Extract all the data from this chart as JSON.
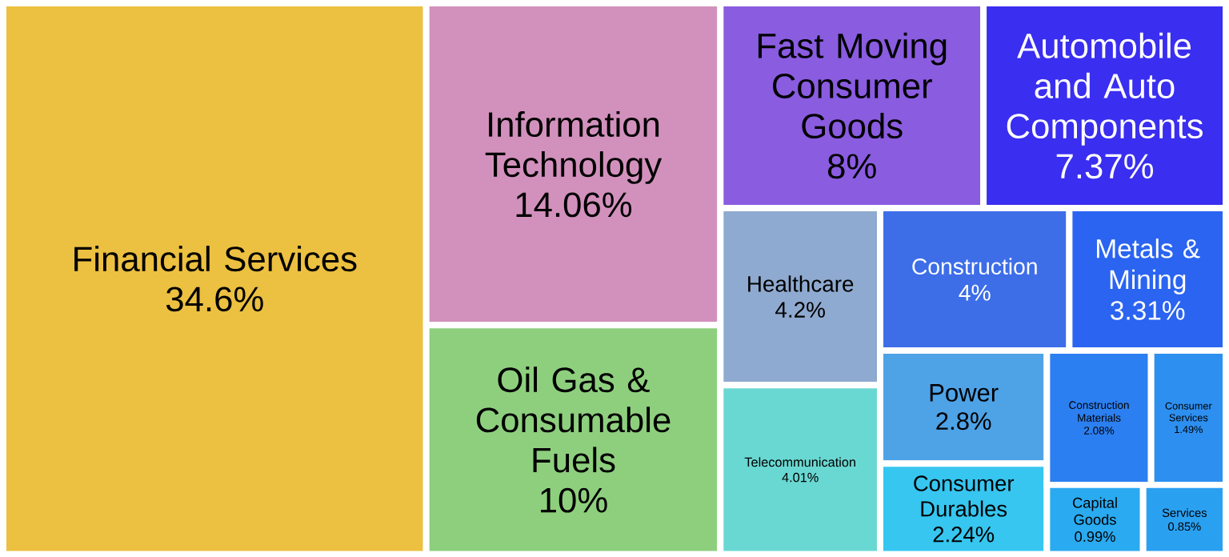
{
  "chart_data": {
    "type": "other",
    "categories": [
      "Financial Services",
      "Information Technology",
      "Oil Gas & Consumable Fuels",
      "Fast Moving Consumer Goods",
      "Automobile and Auto Components",
      "Healthcare",
      "Telecommunication",
      "Construction",
      "Metals & Mining",
      "Power",
      "Consumer Durables",
      "Construction Materials",
      "Consumer Services",
      "Capital Goods",
      "Services"
    ],
    "values": [
      34.6,
      14.06,
      10,
      8,
      7.37,
      4.2,
      4.01,
      4,
      3.31,
      2.8,
      2.24,
      2.08,
      1.49,
      0.99,
      0.85
    ],
    "value_labels": [
      "34.6%",
      "14.06%",
      "10%",
      "8%",
      "7.37%",
      "4.2%",
      "4.01%",
      "4%",
      "3.31%",
      "2.8%",
      "2.24%",
      "2.08%",
      "1.49%",
      "0.99%",
      "0.85%"
    ],
    "colors": [
      "#ecc040",
      "#d291bc",
      "#8ecf7e",
      "#8a5ce0",
      "#3a2ef0",
      "#8faad0",
      "#6ad8d2",
      "#3d6ee8",
      "#2a64f0",
      "#4ea2e6",
      "#36c6f0",
      "#2c7ff0",
      "#2d8ff0",
      "#2aaaf0",
      "#2aa0f0"
    ]
  }
}
